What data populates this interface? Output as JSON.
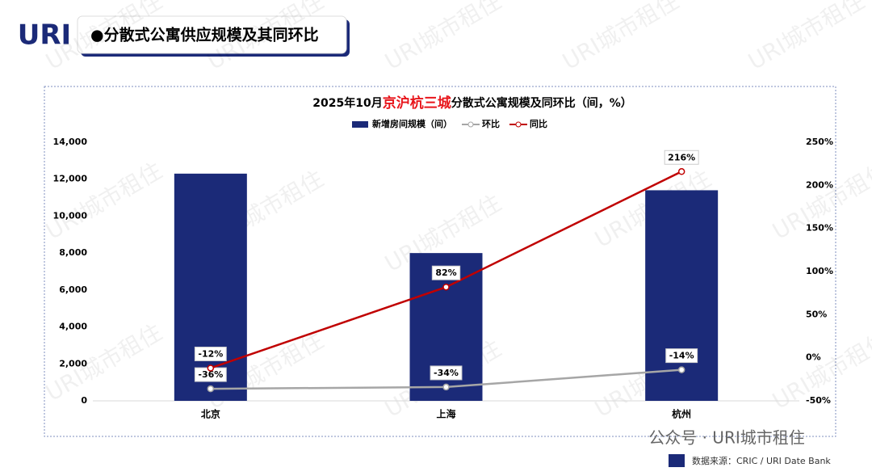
{
  "header": {
    "logo": "URI",
    "title": "●分散式公寓供应规模及其同环比"
  },
  "watermark": "URI城市租住",
  "chart_data": {
    "type": "bar",
    "title": [
      "2025年10月",
      "京沪杭三城",
      "分散式公寓规模及同环比（间，%）"
    ],
    "title_colors": [
      "#000000",
      "#e8151b",
      "#000000"
    ],
    "categories": [
      "北京",
      "上海",
      "杭州"
    ],
    "series": [
      {
        "name": "新增房间规模（间）",
        "type": "bar",
        "color": "#1b2a78",
        "values": [
          12300,
          8000,
          11400
        ]
      },
      {
        "name": "环比",
        "type": "line",
        "axis": "y2",
        "color": "#a6a6a6",
        "values": [
          -36,
          -34,
          -14
        ],
        "value_labels": [
          "-36%",
          "-34%",
          "-14%"
        ]
      },
      {
        "name": "同比",
        "type": "line",
        "axis": "y2",
        "color": "#c00000",
        "values": [
          -12,
          82,
          216
        ],
        "value_labels": [
          "-12%",
          "82%",
          "216%"
        ]
      }
    ],
    "ylim": [
      0,
      14000
    ],
    "yticks": [
      0,
      {
        "value": 2000,
        "label": "2,000"
      },
      {
        "value": 4000,
        "label": "4,000"
      },
      {
        "value": 6000,
        "label": "6,000"
      },
      {
        "value": 8000,
        "label": "8,000"
      },
      {
        "value": 10000,
        "label": "10,000"
      },
      {
        "value": 12000,
        "label": "12,000"
      },
      {
        "value": 14000,
        "label": "14,000"
      }
    ],
    "y2lim": [
      -50,
      250
    ],
    "y2ticks": [
      {
        "value": -50,
        "label": "-50%"
      },
      {
        "value": 0,
        "label": "0%"
      },
      {
        "value": 50,
        "label": "50%"
      },
      {
        "value": 100,
        "label": "100%"
      },
      {
        "value": 150,
        "label": "150%"
      },
      {
        "value": 200,
        "label": "200%"
      },
      {
        "value": 250,
        "label": "250%"
      }
    ],
    "legend": "top"
  },
  "footer": {
    "account": "公众号 · URI城市租住",
    "source": "数据来源：CRIC / URI Date Bank"
  }
}
